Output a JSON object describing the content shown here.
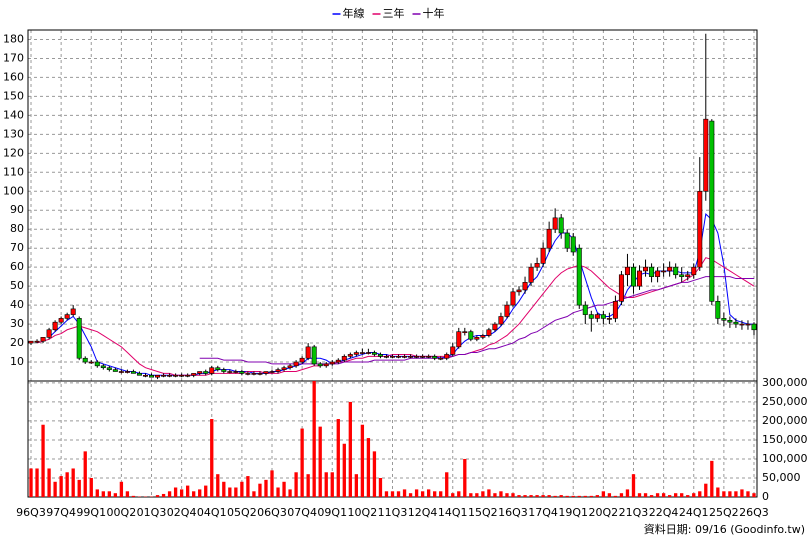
{
  "chart_data": {
    "type": "candlestick",
    "legend": "top",
    "grid": true,
    "footer": "資料日期: 09/16 (Goodinfo.tw)",
    "categories": [
      "96Q3",
      null,
      null,
      null,
      null,
      "97Q4",
      null,
      null,
      null,
      null,
      "99Q1",
      null,
      null,
      null,
      null,
      "00Q2",
      null,
      null,
      null,
      null,
      "01Q3",
      null,
      null,
      null,
      null,
      "02Q4",
      null,
      null,
      null,
      null,
      "04Q1",
      null,
      null,
      null,
      null,
      "05Q2",
      null,
      null,
      null,
      null,
      "06Q3",
      null,
      null,
      null,
      null,
      "07Q4",
      null,
      null,
      null,
      null,
      "09Q1",
      null,
      null,
      null,
      null,
      "10Q2",
      null,
      null,
      null,
      null,
      "11Q3",
      null,
      null,
      null,
      null,
      "12Q4",
      null,
      null,
      null,
      null,
      "14Q1",
      null,
      null,
      null,
      null,
      "15Q2",
      null,
      null,
      null,
      null,
      "16Q3",
      null,
      null,
      null,
      null,
      "17Q4",
      null,
      null,
      null,
      null,
      "19Q1",
      null,
      null,
      null,
      null,
      "20Q2",
      null,
      null,
      null,
      null,
      "21Q3",
      null,
      null,
      null,
      null,
      "22Q4",
      null,
      null,
      null,
      null,
      "24Q1",
      null,
      null,
      null,
      null,
      "25Q2",
      null,
      null,
      null,
      null,
      "26Q3"
    ],
    "up_color": "#ff0000",
    "down_color": "#00c000",
    "volume_color": "#ff0000",
    "open": [
      20,
      21,
      21,
      23,
      27,
      31,
      33,
      35,
      33,
      12,
      10,
      10,
      8,
      7,
      6,
      5,
      5,
      5,
      4,
      3,
      3,
      2,
      3,
      3,
      3,
      3,
      3,
      3,
      4,
      5,
      4,
      7,
      6,
      5,
      5,
      5,
      4,
      4,
      4,
      4,
      5,
      5,
      6,
      7,
      8,
      10,
      12,
      18,
      9,
      8,
      9,
      10,
      11,
      13,
      14,
      15,
      15,
      15,
      14,
      13,
      13,
      13,
      13,
      13,
      13,
      13,
      13,
      13,
      12,
      12,
      14,
      18,
      26,
      26,
      22,
      23,
      24,
      27,
      30,
      34,
      40,
      47,
      48,
      52,
      60,
      62,
      70,
      80,
      86,
      78,
      76,
      70,
      40,
      35,
      33,
      35,
      33,
      33,
      42,
      56,
      60,
      50,
      58,
      60,
      55,
      58,
      58,
      60,
      56,
      55,
      56,
      60,
      100,
      137,
      42,
      33,
      32,
      31,
      30,
      30,
      30
    ],
    "high": [
      21,
      22,
      23,
      28,
      32,
      34,
      36,
      40,
      34,
      13,
      11,
      11,
      9,
      8,
      7,
      6,
      6,
      6,
      5,
      4,
      4,
      3,
      4,
      4,
      4,
      4,
      4,
      4,
      5,
      6,
      8,
      8,
      7,
      6,
      6,
      6,
      5,
      5,
      5,
      5,
      6,
      7,
      8,
      9,
      11,
      13,
      20,
      19,
      10,
      10,
      11,
      12,
      14,
      15,
      16,
      17,
      17,
      16,
      15,
      14,
      14,
      14,
      14,
      14,
      14,
      14,
      14,
      14,
      13,
      15,
      20,
      28,
      28,
      27,
      24,
      25,
      28,
      31,
      36,
      42,
      49,
      50,
      55,
      62,
      65,
      73,
      84,
      91,
      88,
      80,
      78,
      72,
      42,
      37,
      36,
      37,
      36,
      45,
      58,
      67,
      62,
      61,
      64,
      62,
      60,
      62,
      63,
      62,
      60,
      58,
      62,
      118,
      183,
      138,
      45,
      36,
      34,
      33,
      32,
      32,
      31
    ],
    "low": [
      19,
      20,
      20,
      22,
      26,
      30,
      32,
      34,
      11,
      9,
      9,
      7,
      6,
      5,
      5,
      4,
      4,
      4,
      3,
      2,
      2,
      1,
      2,
      2,
      2,
      2,
      2,
      2,
      3,
      3,
      3,
      5,
      4,
      4,
      4,
      3,
      3,
      3,
      3,
      3,
      4,
      4,
      5,
      6,
      7,
      9,
      11,
      8,
      7,
      7,
      8,
      9,
      10,
      12,
      13,
      14,
      14,
      13,
      12,
      12,
      12,
      12,
      12,
      12,
      12,
      12,
      12,
      11,
      11,
      11,
      13,
      17,
      24,
      21,
      21,
      22,
      23,
      26,
      29,
      33,
      39,
      45,
      46,
      50,
      58,
      60,
      68,
      78,
      75,
      68,
      66,
      38,
      30,
      26,
      31,
      30,
      30,
      31,
      40,
      50,
      46,
      48,
      55,
      52,
      52,
      55,
      55,
      54,
      52,
      53,
      54,
      58,
      95,
      40,
      30,
      29,
      28,
      28,
      27,
      27,
      24
    ],
    "close": [
      21,
      21,
      23,
      27,
      31,
      33,
      35,
      38,
      12,
      10,
      10,
      8,
      7,
      6,
      5,
      5,
      5,
      4,
      3,
      3,
      2,
      3,
      3,
      3,
      3,
      3,
      3,
      4,
      5,
      4,
      7,
      6,
      5,
      5,
      5,
      4,
      4,
      4,
      4,
      5,
      5,
      6,
      7,
      8,
      10,
      12,
      18,
      9,
      8,
      9,
      10,
      11,
      13,
      14,
      15,
      15,
      15,
      14,
      13,
      13,
      13,
      13,
      13,
      13,
      13,
      13,
      13,
      12,
      12,
      14,
      18,
      26,
      26,
      22,
      23,
      24,
      27,
      30,
      34,
      40,
      47,
      48,
      52,
      60,
      62,
      70,
      80,
      86,
      78,
      70,
      68,
      40,
      35,
      33,
      35,
      33,
      33,
      42,
      56,
      60,
      50,
      58,
      60,
      55,
      58,
      58,
      60,
      56,
      55,
      56,
      60,
      100,
      138,
      42,
      33,
      32,
      31,
      30,
      30,
      30,
      27
    ],
    "volume": [
      75000,
      75000,
      190000,
      75000,
      40000,
      55000,
      65000,
      75000,
      45000,
      120000,
      50000,
      20000,
      15000,
      15000,
      10000,
      40000,
      15000,
      3000,
      1000,
      1000,
      1000,
      5000,
      8000,
      15000,
      25000,
      20000,
      30000,
      15000,
      20000,
      30000,
      205000,
      60000,
      40000,
      25000,
      25000,
      40000,
      55000,
      15000,
      35000,
      45000,
      70000,
      25000,
      40000,
      20000,
      65000,
      180000,
      60000,
      305000,
      185000,
      65000,
      65000,
      205000,
      140000,
      250000,
      60000,
      190000,
      155000,
      120000,
      50000,
      15000,
      15000,
      15000,
      20000,
      10000,
      20000,
      15000,
      20000,
      15000,
      15000,
      65000,
      10000,
      15000,
      100000,
      10000,
      10000,
      15000,
      20000,
      10000,
      15000,
      10000,
      10000,
      5000,
      5000,
      5000,
      5000,
      5000,
      5000,
      3000,
      5000,
      3000,
      3000,
      3000,
      3000,
      3000,
      5000,
      15000,
      10000,
      3000,
      10000,
      20000,
      60000,
      10000,
      10000,
      5000,
      10000,
      10000,
      5000,
      10000,
      10000,
      5000,
      10000,
      15000,
      35000,
      95000,
      25000,
      15000,
      15000,
      15000,
      20000,
      15000,
      10000
    ],
    "series": [
      {
        "name": "年線",
        "color": "#0000ff",
        "values": [
          null,
          null,
          null,
          23,
          26,
          29,
          32,
          34,
          30,
          24,
          18,
          10,
          9,
          8,
          7,
          6,
          5,
          5,
          4,
          4,
          3,
          3,
          3,
          3,
          3,
          3,
          3,
          3,
          4,
          4,
          5,
          6,
          6,
          6,
          5,
          5,
          5,
          4,
          4,
          4,
          5,
          5,
          6,
          7,
          8,
          9,
          12,
          12,
          12,
          11,
          9,
          10,
          11,
          12,
          13,
          14,
          15,
          15,
          14,
          14,
          13,
          13,
          13,
          13,
          13,
          13,
          13,
          13,
          12,
          13,
          14,
          18,
          21,
          23,
          24,
          24,
          24,
          26,
          29,
          33,
          38,
          42,
          47,
          52,
          55,
          61,
          68,
          74,
          78,
          78,
          75,
          64,
          54,
          44,
          36,
          34,
          34,
          36,
          41,
          48,
          52,
          56,
          57,
          56,
          58,
          58,
          58,
          58,
          57,
          57,
          57,
          68,
          88,
          85,
          78,
          61,
          35,
          32,
          31,
          30,
          30
        ]
      },
      {
        "name": "三年",
        "color": "#e0006a",
        "values": [
          null,
          20,
          21,
          22,
          24,
          25,
          27,
          28,
          29,
          28,
          27,
          26,
          24,
          22,
          20,
          18,
          15,
          12,
          9,
          7,
          6,
          5,
          4,
          4,
          3,
          3,
          3,
          3,
          3,
          3,
          4,
          4,
          4,
          4,
          4,
          4,
          5,
          5,
          5,
          4,
          4,
          4,
          5,
          5,
          5,
          6,
          7,
          8,
          8,
          9,
          9,
          10,
          10,
          11,
          12,
          12,
          13,
          13,
          13,
          13,
          14,
          14,
          14,
          14,
          13,
          13,
          13,
          13,
          13,
          13,
          13,
          14,
          14,
          15,
          16,
          17,
          19,
          20,
          22,
          24,
          27,
          30,
          34,
          38,
          42,
          46,
          50,
          54,
          57,
          59,
          60,
          61,
          60,
          58,
          55,
          52,
          49,
          47,
          45,
          44,
          44,
          45,
          46,
          47,
          48,
          49,
          50,
          51,
          52,
          54,
          56,
          60,
          65,
          64,
          62,
          60,
          58,
          56,
          54,
          52,
          50
        ]
      },
      {
        "name": "十年",
        "color": "#8000b0",
        "values": [
          null,
          null,
          null,
          null,
          null,
          null,
          null,
          null,
          null,
          null,
          null,
          null,
          null,
          null,
          null,
          null,
          null,
          null,
          null,
          null,
          null,
          null,
          null,
          null,
          null,
          null,
          null,
          null,
          12,
          12,
          12,
          12,
          11,
          11,
          11,
          11,
          10,
          10,
          10,
          10,
          9,
          9,
          9,
          9,
          9,
          9,
          9,
          9,
          9,
          9,
          9,
          9,
          10,
          10,
          10,
          10,
          10,
          11,
          11,
          11,
          11,
          11,
          11,
          12,
          12,
          12,
          12,
          12,
          12,
          12,
          13,
          14,
          14,
          15,
          15,
          16,
          17,
          17,
          18,
          19,
          20,
          22,
          23,
          25,
          26,
          28,
          30,
          32,
          33,
          34,
          36,
          37,
          38,
          39,
          40,
          40,
          41,
          42,
          43,
          44,
          45,
          46,
          47,
          48,
          48,
          49,
          50,
          51,
          52,
          52,
          53,
          54,
          55,
          55,
          55,
          55,
          55,
          54,
          54,
          54,
          54
        ]
      }
    ],
    "ylim": [
      0,
      185
    ],
    "yticks": [
      10,
      20,
      30,
      40,
      50,
      60,
      70,
      80,
      90,
      100,
      110,
      120,
      130,
      140,
      150,
      160,
      170,
      180
    ],
    "y2lim": [
      0,
      305000
    ],
    "y2ticks": [
      0,
      {
        "value": 50000,
        "label": "50,000"
      },
      {
        "value": 100000,
        "label": "100,000"
      },
      {
        "value": 150000,
        "label": "150,000"
      },
      {
        "value": 200000,
        "label": "200,000"
      },
      {
        "value": 250000,
        "label": "250,000"
      },
      {
        "value": 300000,
        "label": "300,000"
      }
    ]
  }
}
